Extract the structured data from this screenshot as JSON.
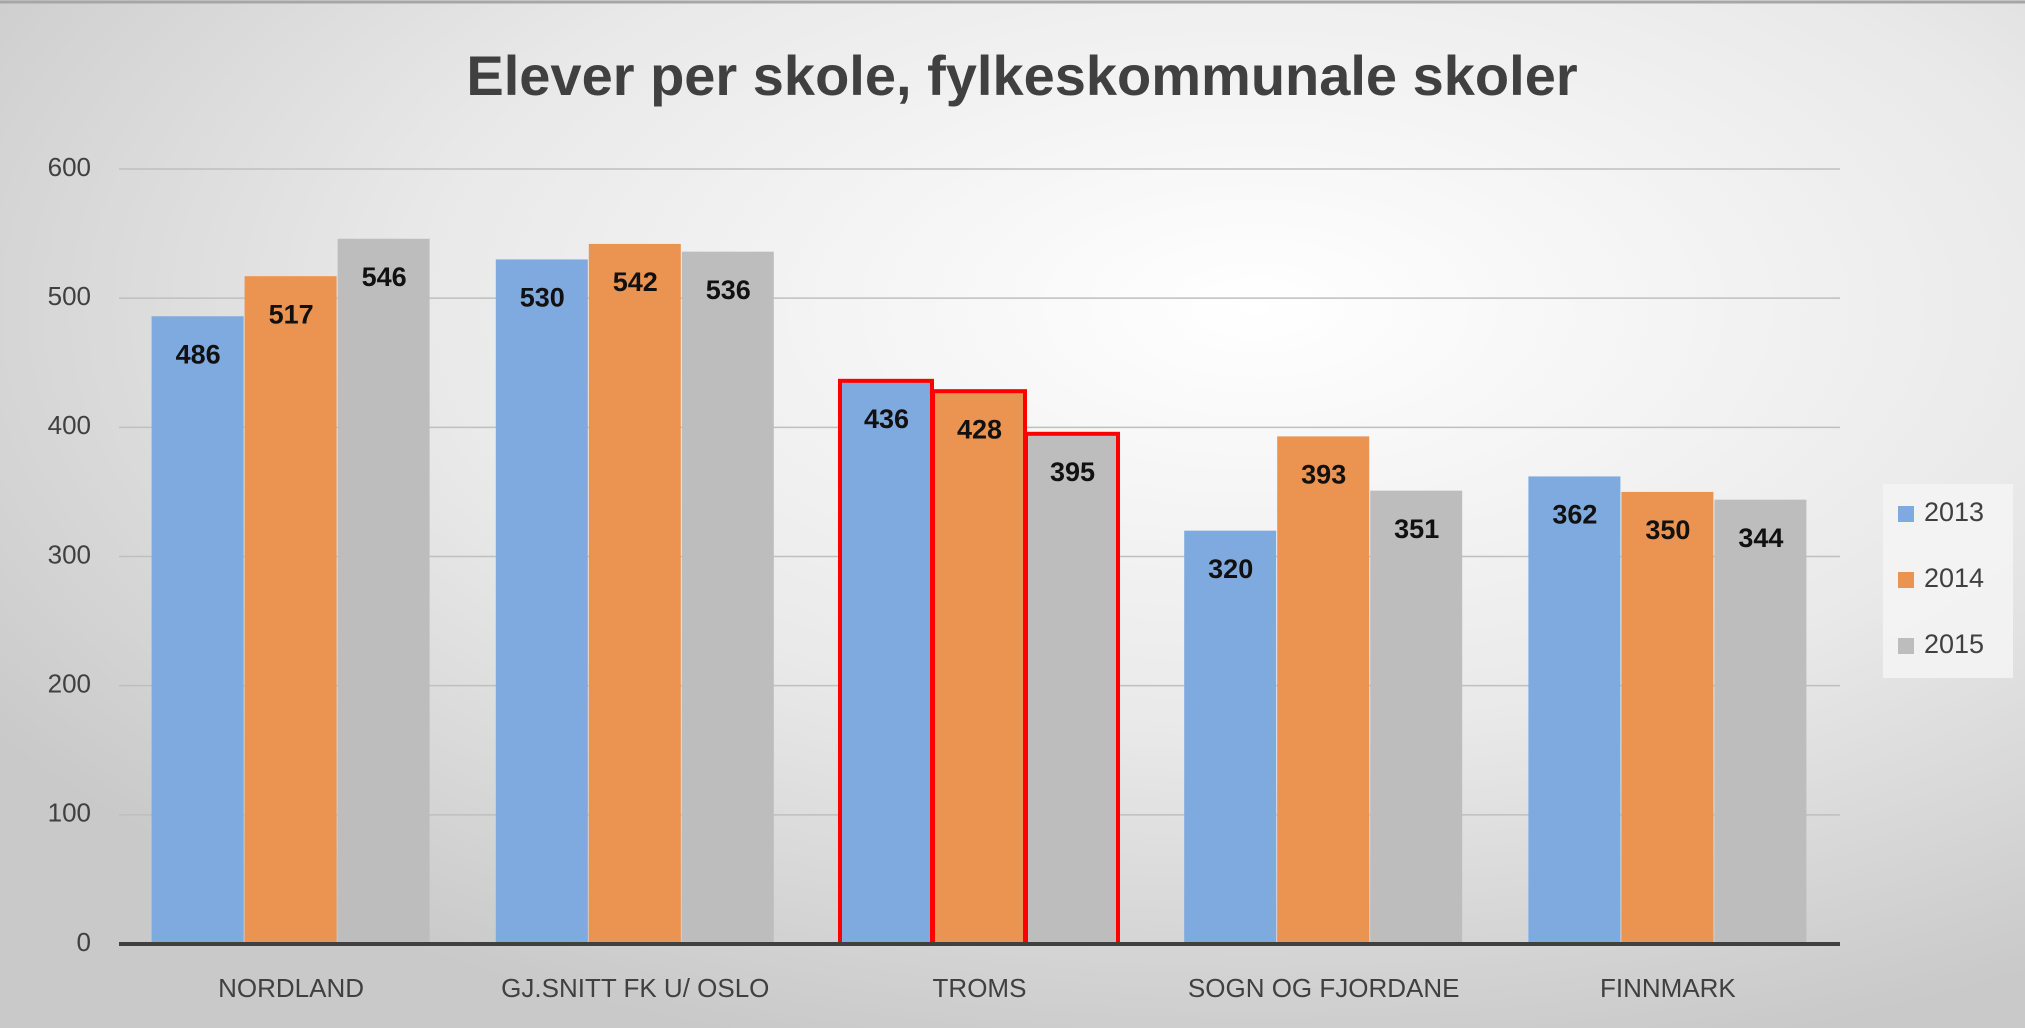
{
  "chart_data": {
    "type": "bar",
    "title": "Elever per skole, fylkeskommunale skoler",
    "categories": [
      "NORDLAND",
      "GJ.SNITT FK U/ OSLO",
      "TROMS",
      "SOGN OG FJORDANE",
      "FINNMARK"
    ],
    "series": [
      {
        "name": "2013",
        "color": "#7faadf",
        "values": [
          486,
          530,
          436,
          320,
          362
        ]
      },
      {
        "name": "2014",
        "color": "#eb9350",
        "values": [
          517,
          542,
          428,
          393,
          350
        ]
      },
      {
        "name": "2015",
        "color": "#bdbdbd",
        "values": [
          546,
          536,
          395,
          351,
          344
        ]
      }
    ],
    "ylim": [
      0,
      600
    ],
    "yticks": [
      0,
      100,
      200,
      300,
      400,
      500,
      600
    ],
    "grid": true,
    "legend": "right",
    "outline": {
      "category": "TROMS",
      "color": "#ff0000"
    }
  }
}
